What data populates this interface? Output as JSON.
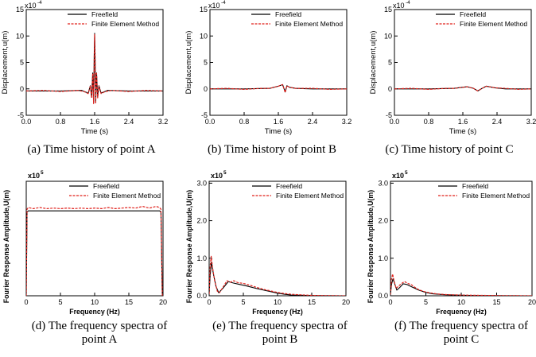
{
  "colors": {
    "freefield": "#000000",
    "fem": "#e0201b"
  },
  "chart_data": [
    {
      "id": "a",
      "type": "line",
      "caption": [
        "(a) Time history of point A"
      ],
      "ylabel": "Displacement,u(m)",
      "xlabel": "Time (s)",
      "bold_labels": false,
      "multiplier": "x10",
      "multiplier_exp": "-4",
      "xlim": [
        0,
        3.2
      ],
      "ylim": [
        -5,
        15
      ],
      "xticks": [
        {
          "v": 0,
          "t": "0.0"
        },
        {
          "v": 0.8,
          "t": "0.8"
        },
        {
          "v": 1.6,
          "t": "1.6"
        },
        {
          "v": 2.4,
          "t": "2.4"
        },
        {
          "v": 3.2,
          "t": "3.2"
        }
      ],
      "yticks": [
        {
          "v": -5,
          "t": "-5"
        },
        {
          "v": 0,
          "t": "0"
        },
        {
          "v": 5,
          "t": "5"
        },
        {
          "v": 10,
          "t": "10"
        },
        {
          "v": 15,
          "t": "15"
        }
      ],
      "legend": [
        "Freefield",
        "Finite Element Method"
      ],
      "series": [
        {
          "name": "Freefield",
          "style": "solid",
          "x": [
            0,
            0.8,
            1.3,
            1.45,
            1.5,
            1.53,
            1.555,
            1.575,
            1.59,
            1.6,
            1.61,
            1.625,
            1.645,
            1.67,
            1.7,
            1.75,
            1.9,
            2.4,
            3.2
          ],
          "y": [
            -0.4,
            -0.4,
            -0.3,
            -0.8,
            0.6,
            -1.6,
            3.0,
            -2.6,
            6.5,
            10.5,
            6.5,
            -2.6,
            3.0,
            -1.6,
            0.6,
            -0.8,
            -0.3,
            -0.4,
            -0.4
          ]
        },
        {
          "name": "Finite Element Method",
          "style": "dashed",
          "x": [
            0,
            0.4,
            0.8,
            1.2,
            1.35,
            1.45,
            1.5,
            1.53,
            1.555,
            1.575,
            1.59,
            1.6,
            1.61,
            1.625,
            1.645,
            1.67,
            1.7,
            1.75,
            1.85,
            2.0,
            2.4,
            2.8,
            3.2
          ],
          "y": [
            -0.4,
            -0.3,
            -0.5,
            -0.3,
            -0.5,
            -0.9,
            0.5,
            -1.7,
            2.9,
            -2.8,
            6.3,
            10.3,
            6.3,
            -2.8,
            2.9,
            -1.7,
            0.5,
            -0.9,
            -0.5,
            -0.3,
            -0.5,
            -0.3,
            -0.4
          ]
        }
      ]
    },
    {
      "id": "b",
      "type": "line",
      "caption": [
        "(b) Time history of point B"
      ],
      "ylabel": "Displacement,u(m)",
      "xlabel": "Time (s)",
      "bold_labels": false,
      "multiplier": "x10",
      "multiplier_exp": "-4",
      "xlim": [
        0,
        3.2
      ],
      "ylim": [
        -5,
        15
      ],
      "xticks": [
        {
          "v": 0,
          "t": "0.0"
        },
        {
          "v": 0.8,
          "t": "0.8"
        },
        {
          "v": 1.6,
          "t": "1.6"
        },
        {
          "v": 2.4,
          "t": "2.4"
        },
        {
          "v": 3.2,
          "t": "3.2"
        }
      ],
      "yticks": [
        {
          "v": -5,
          "t": "-5"
        },
        {
          "v": 0,
          "t": "0"
        },
        {
          "v": 5,
          "t": "5"
        },
        {
          "v": 10,
          "t": "10"
        },
        {
          "v": 15,
          "t": "15"
        }
      ],
      "legend": [
        "Freefield",
        "Finite Element Method"
      ],
      "series": [
        {
          "name": "Freefield",
          "style": "solid",
          "x": [
            0,
            0.8,
            1.4,
            1.6,
            1.7,
            1.76,
            1.8,
            1.86,
            2.0,
            2.4,
            3.2
          ],
          "y": [
            0,
            0,
            0.1,
            0.5,
            0.8,
            -0.6,
            0.6,
            0.3,
            0.1,
            0,
            0
          ]
        },
        {
          "name": "Finite Element Method",
          "style": "dashed",
          "x": [
            0,
            0.4,
            0.8,
            1.2,
            1.4,
            1.6,
            1.7,
            1.76,
            1.8,
            1.86,
            2.0,
            2.4,
            2.8,
            3.2
          ],
          "y": [
            0,
            0.1,
            -0.1,
            0.1,
            0.1,
            0.5,
            0.8,
            -0.7,
            0.6,
            0.3,
            0.1,
            0.1,
            -0.1,
            0
          ]
        }
      ]
    },
    {
      "id": "c",
      "type": "line",
      "caption": [
        "(c) Time history of point C"
      ],
      "ylabel": "Displacement,u(m)",
      "xlabel": "Time (s)",
      "bold_labels": false,
      "multiplier": "x10",
      "multiplier_exp": "-4",
      "xlim": [
        0,
        3.2
      ],
      "ylim": [
        -5,
        15
      ],
      "xticks": [
        {
          "v": 0,
          "t": "0.0"
        },
        {
          "v": 0.8,
          "t": "0.8"
        },
        {
          "v": 1.6,
          "t": "1.6"
        },
        {
          "v": 2.4,
          "t": "2.4"
        },
        {
          "v": 3.2,
          "t": "3.2"
        }
      ],
      "yticks": [
        {
          "v": -5,
          "t": "-5"
        },
        {
          "v": 0,
          "t": "0"
        },
        {
          "v": 5,
          "t": "5"
        },
        {
          "v": 10,
          "t": "10"
        },
        {
          "v": 15,
          "t": "15"
        }
      ],
      "legend": [
        "Freefield",
        "Finite Element Method"
      ],
      "series": [
        {
          "name": "Freefield",
          "style": "solid",
          "x": [
            0,
            0.8,
            1.4,
            1.7,
            1.85,
            1.95,
            2.05,
            2.15,
            2.35,
            2.6,
            3.2
          ],
          "y": [
            0,
            0,
            0.1,
            0.4,
            0.1,
            -0.4,
            0.1,
            0.5,
            0.2,
            0,
            0
          ]
        },
        {
          "name": "Finite Element Method",
          "style": "dashed",
          "x": [
            0,
            0.4,
            0.8,
            1.2,
            1.4,
            1.7,
            1.85,
            1.95,
            2.05,
            2.15,
            2.35,
            2.6,
            2.9,
            3.2
          ],
          "y": [
            0,
            0.1,
            -0.1,
            0.1,
            0.1,
            0.4,
            0.1,
            -0.4,
            0.1,
            0.5,
            0.2,
            0.1,
            -0.1,
            0
          ]
        }
      ]
    },
    {
      "id": "d",
      "type": "line",
      "caption": [
        "(d) The frequency spectra of",
        "point A"
      ],
      "ylabel": "Fourier Response Amplitude,U(m)",
      "xlabel": "Frequency (Hz)",
      "bold_labels": true,
      "multiplier": "x10",
      "multiplier_exp": "5",
      "xlim": [
        0,
        20
      ],
      "ylim": [
        0,
        2.05
      ],
      "xticks": [
        {
          "v": 0,
          "t": "0"
        },
        {
          "v": 5,
          "t": "5"
        },
        {
          "v": 10,
          "t": "10"
        },
        {
          "v": 15,
          "t": "15"
        },
        {
          "v": 20,
          "t": "20"
        }
      ],
      "yticks": [],
      "legend": [
        "Freefield",
        "Finite Element Method"
      ],
      "series": [
        {
          "name": "Freefield",
          "style": "solid",
          "x": [
            0,
            0.12,
            0.3,
            5,
            10,
            15,
            19.5,
            19.7,
            19.9
          ],
          "y": [
            0,
            1.5,
            1.52,
            1.52,
            1.52,
            1.52,
            1.52,
            1.5,
            0
          ]
        },
        {
          "name": "Finite Element Method",
          "style": "dashed",
          "x": [
            0,
            0.12,
            0.3,
            1,
            2,
            3,
            4,
            5,
            6,
            7,
            8,
            9,
            10,
            11,
            12,
            13,
            14,
            15,
            16,
            17,
            18,
            19,
            19.5,
            19.7,
            19.9
          ],
          "y": [
            0,
            1.55,
            1.58,
            1.56,
            1.58,
            1.56,
            1.57,
            1.56,
            1.57,
            1.56,
            1.57,
            1.56,
            1.57,
            1.56,
            1.58,
            1.56,
            1.57,
            1.58,
            1.57,
            1.6,
            1.57,
            1.6,
            1.58,
            1.55,
            0
          ]
        }
      ]
    },
    {
      "id": "e",
      "type": "line",
      "caption": [
        "(e) The frequency spectra of",
        "point B"
      ],
      "ylabel": "Fourier Response Amplitude,U(m)",
      "xlabel": "Frequency (Hz)",
      "bold_labels": true,
      "multiplier": "x10",
      "multiplier_exp": "5",
      "xlim": [
        0,
        20
      ],
      "ylim": [
        0,
        3.05
      ],
      "xticks": [
        {
          "v": 0,
          "t": "0"
        },
        {
          "v": 5,
          "t": "5"
        },
        {
          "v": 10,
          "t": "10"
        },
        {
          "v": 15,
          "t": "15"
        },
        {
          "v": 20,
          "t": "20"
        }
      ],
      "yticks": [
        {
          "v": 0,
          "t": "0.0"
        },
        {
          "v": 1,
          "t": "1.0"
        },
        {
          "v": 2,
          "t": "2.0"
        },
        {
          "v": 3,
          "t": "3.0"
        }
      ],
      "legend": [
        "Freefield",
        "Finite Element Method"
      ],
      "series": [
        {
          "name": "Freefield",
          "style": "solid",
          "x": [
            0,
            0.15,
            0.35,
            0.6,
            1.0,
            1.4,
            2.0,
            2.8,
            3.5,
            4.5,
            5.5,
            7,
            8.5,
            10,
            11,
            12,
            14,
            16,
            18,
            20
          ],
          "y": [
            0.05,
            0.55,
            0.9,
            0.6,
            0.25,
            0.08,
            0.2,
            0.38,
            0.34,
            0.3,
            0.26,
            0.19,
            0.13,
            0.07,
            0.04,
            0.02,
            0.01,
            0.005,
            0.002,
            0
          ]
        },
        {
          "name": "Finite Element Method",
          "style": "dashed",
          "x": [
            0,
            0.15,
            0.3,
            0.5,
            0.8,
            1.2,
            1.5,
            2.0,
            2.6,
            3.1,
            3.6,
            4.2,
            5.0,
            6.0,
            7.0,
            8.0,
            9.0,
            10,
            11,
            12,
            13,
            15,
            17,
            20
          ],
          "y": [
            0.05,
            0.8,
            1.05,
            0.75,
            0.4,
            0.12,
            0.08,
            0.22,
            0.4,
            0.36,
            0.4,
            0.35,
            0.33,
            0.28,
            0.22,
            0.17,
            0.13,
            0.09,
            0.06,
            0.04,
            0.03,
            0.01,
            0.005,
            0
          ]
        }
      ]
    },
    {
      "id": "f",
      "type": "line",
      "caption": [
        "(f) The frequency spectra of",
        "point C"
      ],
      "ylabel": "Fourier Response Amplitude,U(m)",
      "xlabel": "Frequency (Hz)",
      "bold_labels": true,
      "multiplier": "x10",
      "multiplier_exp": "5",
      "xlim": [
        0,
        20
      ],
      "ylim": [
        0,
        3.05
      ],
      "xticks": [
        {
          "v": 0,
          "t": "0"
        },
        {
          "v": 5,
          "t": "5"
        },
        {
          "v": 10,
          "t": "10"
        },
        {
          "v": 15,
          "t": "15"
        },
        {
          "v": 20,
          "t": "20"
        }
      ],
      "yticks": [
        {
          "v": 0,
          "t": "0.0"
        },
        {
          "v": 1,
          "t": "1.0"
        },
        {
          "v": 2,
          "t": "2.0"
        },
        {
          "v": 3,
          "t": "3.0"
        }
      ],
      "legend": [
        "Freefield",
        "Finite Element Method"
      ],
      "series": [
        {
          "name": "Freefield",
          "style": "solid",
          "x": [
            0,
            0.15,
            0.35,
            0.55,
            0.9,
            1.3,
            1.8,
            2.3,
            3.0,
            4.0,
            5.0,
            6.0,
            7.5,
            9,
            11,
            14,
            17,
            20
          ],
          "y": [
            0.03,
            0.3,
            0.45,
            0.35,
            0.15,
            0.22,
            0.32,
            0.3,
            0.24,
            0.15,
            0.09,
            0.05,
            0.03,
            0.02,
            0.01,
            0.005,
            0.002,
            0
          ]
        },
        {
          "name": "Finite Element Method",
          "style": "dashed",
          "x": [
            0,
            0.15,
            0.3,
            0.5,
            0.8,
            1.1,
            1.5,
            2.0,
            2.4,
            2.9,
            3.5,
            4.0,
            4.8,
            5.5,
            6.5,
            8,
            10,
            13,
            16,
            20
          ],
          "y": [
            0.03,
            0.45,
            0.58,
            0.4,
            0.2,
            0.25,
            0.32,
            0.38,
            0.33,
            0.3,
            0.22,
            0.16,
            0.11,
            0.08,
            0.05,
            0.03,
            0.02,
            0.01,
            0.005,
            0
          ]
        }
      ]
    }
  ]
}
